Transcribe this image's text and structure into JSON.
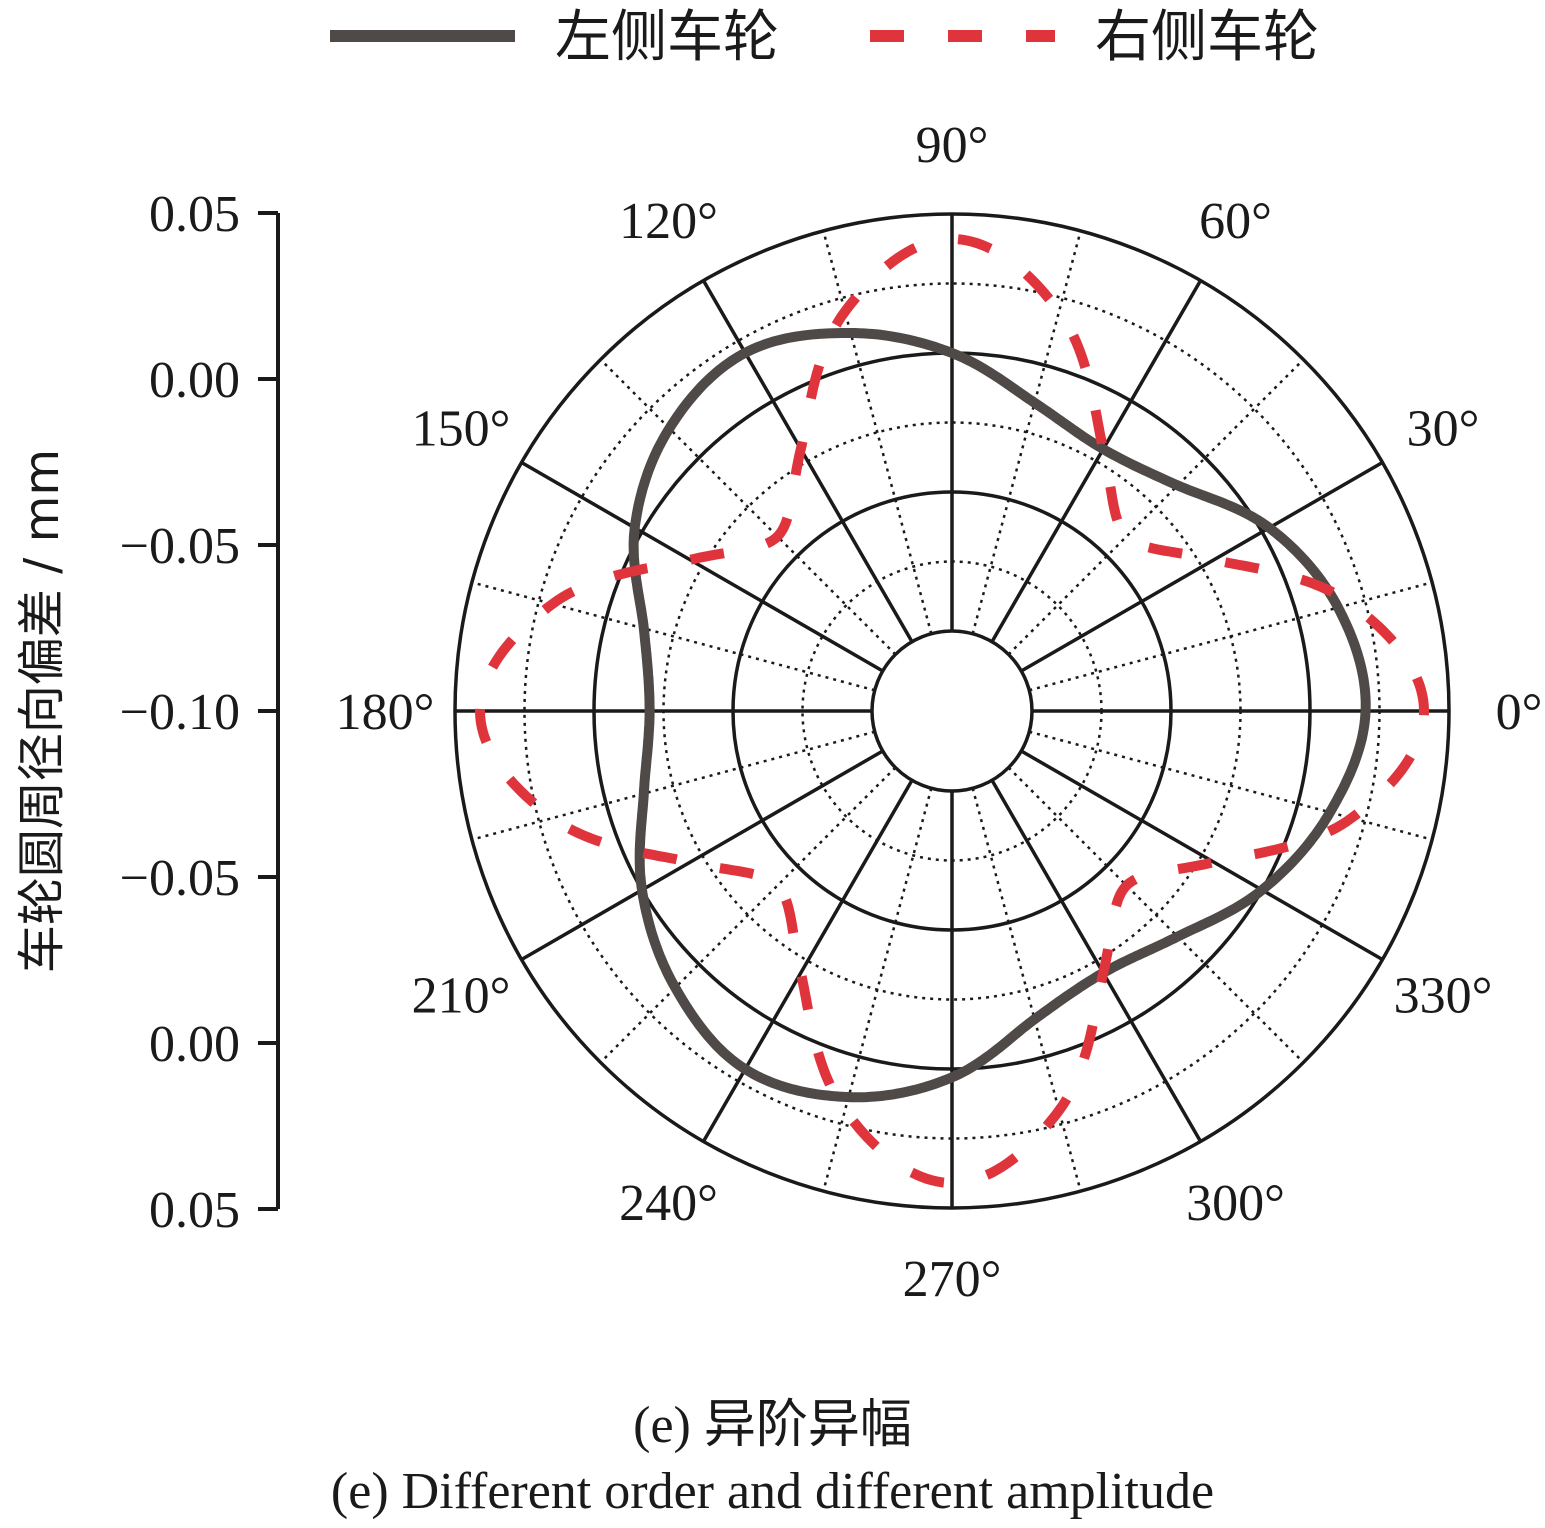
{
  "legend": {
    "left_label": "左侧车轮",
    "right_label": "右侧车轮"
  },
  "y_axis": {
    "label": "车轮圆周径向偏差 / mm",
    "ticks": [
      "0.05",
      "0.00",
      "−0.05",
      "−0.10",
      "−0.05",
      "0.00",
      "0.05"
    ]
  },
  "angle_labels": [
    "0°",
    "30°",
    "60°",
    "90°",
    "120°",
    "150°",
    "180°",
    "210°",
    "240°",
    "270°",
    "300°",
    "330°"
  ],
  "caption": {
    "cn": "(e) 异阶异幅",
    "en": "(e) Different order and different amplitude"
  },
  "colors": {
    "left": "#4f4a47",
    "right": "#e0343c",
    "axis": "#1a1a1a"
  },
  "chart_data": {
    "type": "line",
    "subtype": "polar",
    "radial_range": [
      -0.1,
      0.05
    ],
    "radial_ticks": [
      -0.1,
      -0.05,
      0.0,
      0.05
    ],
    "angular_ticks_deg": [
      0,
      30,
      60,
      90,
      120,
      150,
      180,
      210,
      240,
      270,
      300,
      330
    ],
    "grid": true,
    "legend_position": "top",
    "series": [
      {
        "name": "左侧车轮",
        "style": "solid",
        "theta_deg": [
          0,
          15,
          30,
          45,
          60,
          75,
          90,
          105,
          120,
          135,
          150,
          165,
          180,
          195,
          210,
          225,
          240,
          255,
          270,
          285,
          300,
          315,
          330,
          345
        ],
        "values": [
          0.02,
          0.015,
          0.003,
          -0.014,
          -0.02,
          -0.014,
          0.0,
          0.012,
          0.02,
          0.015,
          0.003,
          -0.014,
          -0.02,
          -0.014,
          0.0,
          0.012,
          0.02,
          0.015,
          0.003,
          -0.014,
          -0.02,
          -0.014,
          0.0,
          0.012
        ]
      },
      {
        "name": "右侧车轮",
        "style": "dashed",
        "theta_deg": [
          0,
          15,
          30,
          45,
          60,
          75,
          90,
          105,
          120,
          135,
          150,
          165,
          180,
          195,
          210,
          225,
          240,
          255,
          270,
          285,
          300,
          315,
          330,
          345
        ],
        "values": [
          0.041,
          0.02,
          -0.02,
          -0.04,
          -0.02,
          0.02,
          0.041,
          0.02,
          -0.02,
          -0.04,
          -0.02,
          0.02,
          0.041,
          0.02,
          -0.02,
          -0.04,
          -0.02,
          0.02,
          0.041,
          0.02,
          -0.02,
          -0.04,
          -0.02,
          0.02
        ]
      }
    ]
  }
}
